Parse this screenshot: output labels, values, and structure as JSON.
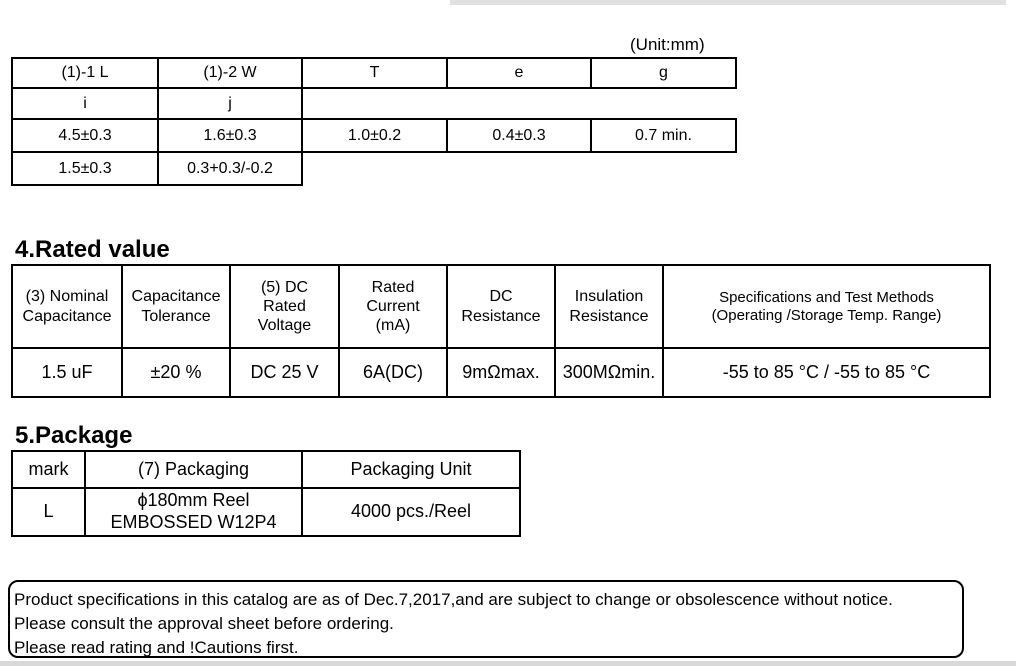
{
  "dimensions": {
    "unit_note": "(Unit:mm)",
    "header1": [
      "(1)-1 L",
      "(1)-2 W",
      "T",
      "e",
      "g"
    ],
    "header2": [
      "i",
      "j"
    ],
    "values1": [
      "4.5±0.3",
      "1.6±0.3",
      "1.0±0.2",
      "0.4±0.3",
      "0.7 min."
    ],
    "values2": [
      "1.5±0.3",
      "0.3+0.3/-0.2"
    ]
  },
  "rated": {
    "title": "4.Rated value",
    "headers": [
      "(3) Nominal Capacitance",
      "Capacitance Tolerance",
      "(5) DC Rated Voltage",
      "Rated Current (mA)",
      "DC Resistance",
      "Insulation Resistance",
      "Specifications and Test Methods (Operating /Storage Temp. Range)"
    ],
    "values": [
      "1.5 uF",
      "±20 %",
      "DC 25 V",
      "6A(DC)",
      "9mΩmax.",
      "300MΩmin.",
      "-55 to 85 °C / -55 to 85 °C"
    ]
  },
  "package": {
    "title": "5.Package",
    "headers": [
      "mark",
      "(7) Packaging",
      "Packaging Unit"
    ],
    "mark": "L",
    "packaging_line1": "ϕ180mm Reel",
    "packaging_line2": "EMBOSSED W12P4",
    "unit": "4000 pcs./Reel"
  },
  "notice": [
    "Product specifications in this catalog are as of Dec.7,2017,and are subject to change or obsolescence without notice.",
    "Please consult the approval sheet before ordering.",
    "Please read rating and !Cautions first."
  ]
}
